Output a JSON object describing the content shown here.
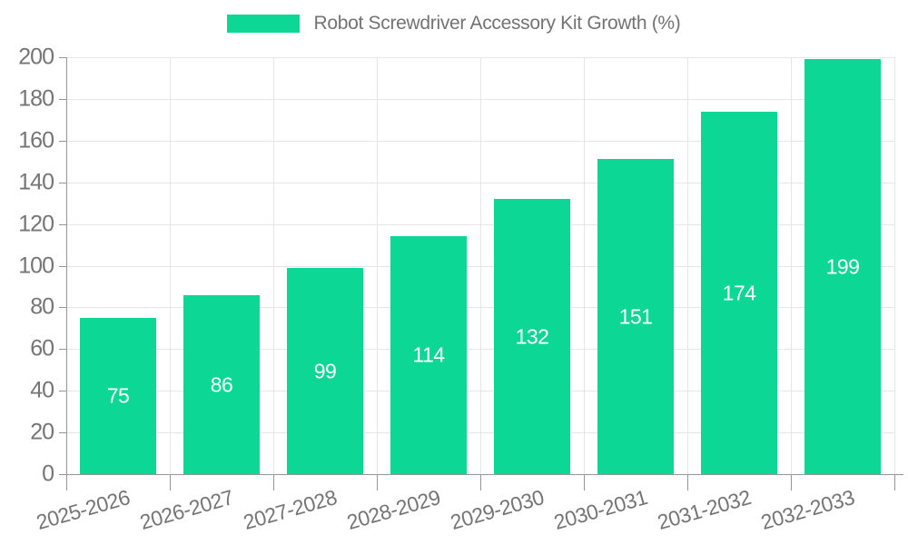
{
  "legend": {
    "label": "Robot Screwdriver Accessory Kit Growth (%)"
  },
  "chart_data": {
    "type": "bar",
    "title": "Robot Screwdriver Accessory Kit Growth (%)",
    "categories": [
      "2025-2026",
      "2026-2027",
      "2027-2028",
      "2028-2029",
      "2029-2030",
      "2030-2031",
      "2031-2032",
      "2032-2033"
    ],
    "values": [
      75,
      86,
      99,
      114,
      132,
      151,
      174,
      199
    ],
    "value_labels": [
      "75",
      "86",
      "99",
      "114",
      "132",
      "151",
      "174",
      "199"
    ],
    "xlabel": "",
    "ylabel": "",
    "ylim": [
      0,
      200
    ],
    "ytick_step": 20,
    "ytick_labels": [
      "0",
      "20",
      "40",
      "60",
      "80",
      "100",
      "120",
      "140",
      "160",
      "180",
      "200"
    ],
    "grid": true,
    "legend_position": "top-center",
    "colors": {
      "bar": "#0cd795",
      "value_label": "#ffffff",
      "gridline": "#e6e6e6",
      "axis": "#969696",
      "tick_text": "#757575",
      "legend_text": "#737373",
      "background": "#ffffff"
    }
  }
}
